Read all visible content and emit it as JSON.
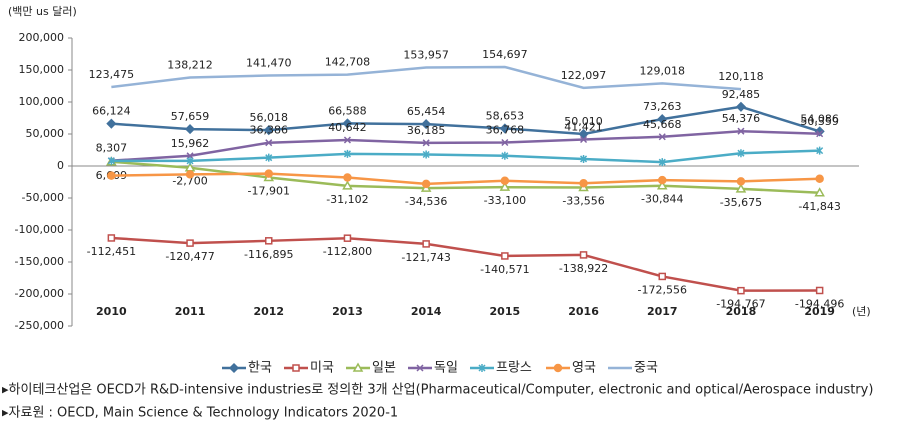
{
  "chart_data": {
    "type": "line",
    "y_label": "(백만 us 달러)",
    "x_unit": "(년)",
    "categories": [
      "2010",
      "2011",
      "2012",
      "2013",
      "2014",
      "2015",
      "2016",
      "2017",
      "2018",
      "2019"
    ],
    "series": [
      {
        "name": "한국",
        "color": "#41719c",
        "marker": "diamond",
        "values": [
          66124,
          57659,
          56018,
          66588,
          65454,
          58653,
          50010,
          73263,
          92485,
          54086
        ],
        "value_labels": [
          "66,124",
          "57,659",
          "56,018",
          "66,588",
          "65,454",
          "58,653",
          "50,010",
          "73,263",
          "92,485",
          "54,086"
        ]
      },
      {
        "name": "미국",
        "color": "#c0504d",
        "marker": "square",
        "values": [
          -112451,
          -120477,
          -116895,
          -112800,
          -121743,
          -140571,
          -138922,
          -172556,
          -194767,
          -194496
        ],
        "value_labels": [
          "-112,451",
          "-120,477",
          "-116,895",
          "-112,800",
          "-121,743",
          "-140,571",
          "-138,922",
          "-172,556",
          "-194,767",
          "-194,496"
        ]
      },
      {
        "name": "일본",
        "color": "#9bbb59",
        "marker": "triangle",
        "values": [
          6609,
          -2700,
          -17901,
          -31102,
          -34536,
          -33100,
          -33556,
          -30844,
          -35675,
          -41843
        ],
        "value_labels": [
          "6,609",
          "-2,700",
          "-17,901",
          "-31,102",
          "-34,536",
          "-33,100",
          "-33,556",
          "-30,844",
          "-35,675",
          "-41,843"
        ]
      },
      {
        "name": "독일",
        "color": "#8064a2",
        "marker": "x",
        "values": [
          8307,
          15962,
          36386,
          40642,
          36185,
          36768,
          41421,
          45668,
          54376,
          50359
        ],
        "value_labels": [
          "8,307",
          "15,962",
          "36,386",
          "40,642",
          "36,185",
          "36,768",
          "41,421",
          "45,668",
          "54,376",
          "50,359"
        ]
      },
      {
        "name": "프랑스",
        "color": "#4bacc6",
        "marker": "star",
        "values": [
          8000,
          8000,
          13000,
          19000,
          18000,
          16000,
          11000,
          6000,
          20000,
          24000
        ]
      },
      {
        "name": "영국",
        "color": "#f79646",
        "marker": "circle",
        "values": [
          -15000,
          -13000,
          -12000,
          -18000,
          -28000,
          -23000,
          -27000,
          -22000,
          -24000,
          -20000
        ]
      },
      {
        "name": "중국",
        "color": "#95b3d7",
        "marker": "none",
        "values": [
          123475,
          138212,
          141470,
          142708,
          153957,
          154697,
          122097,
          129018,
          120118,
          null
        ],
        "value_labels": [
          "123,475",
          "138,212",
          "141,470",
          "142,708",
          "153,957",
          "154,697",
          "122,097",
          "129,018",
          "120,118",
          null
        ]
      }
    ],
    "ylim": [
      -250000,
      200000
    ],
    "yticks": [
      {
        "value": -250000,
        "label": "-250,000"
      },
      {
        "value": -200000,
        "label": "-200,000"
      },
      {
        "value": -150000,
        "label": "-150,000"
      },
      {
        "value": -100000,
        "label": "-100,000"
      },
      {
        "value": -50000,
        "label": "-50,000"
      },
      0,
      {
        "value": 50000,
        "label": "50,000"
      },
      {
        "value": 100000,
        "label": "100,000"
      },
      {
        "value": 150000,
        "label": "150,000"
      },
      {
        "value": 200000,
        "label": "200,000"
      }
    ],
    "grid": false,
    "notes": [
      "▸하이테크산업은 OECD가 R&D-intensive industries로 정의한 3개 산업(Pharmaceutical/Computer, electronic and optical/Aerospace industry)",
      "▸자료원 : OECD, Main Science & Technology Indicators 2020-1"
    ]
  }
}
